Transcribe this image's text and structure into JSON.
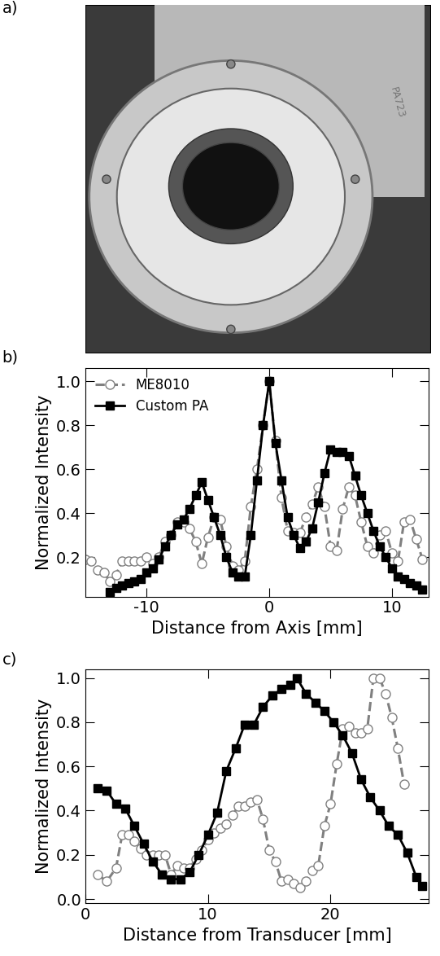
{
  "panel_labels": [
    "a)",
    "b)",
    "c)"
  ],
  "photo": {
    "engraving": "PA723"
  },
  "chart_data": [
    {
      "type": "line",
      "x_label": "Distance from Axis [mm]",
      "y_label": "Normalized Intensity",
      "xlim": [
        -15,
        13
      ],
      "xticks": [
        -10,
        0,
        10
      ],
      "ylim": [
        0.02,
        1.06
      ],
      "yticks": [
        0.2,
        0.4,
        0.6,
        0.8,
        1.0
      ],
      "legend": "upper left",
      "series": [
        {
          "name": "ME8010",
          "color": "#808080",
          "marker": "circle",
          "line_style": "dashed",
          "x": [
            -15,
            -14.5,
            -14,
            -13.5,
            -13,
            -12.5,
            -12,
            -11.5,
            -11,
            -10.5,
            -10,
            -9.5,
            -9,
            -8.5,
            -8,
            -7.5,
            -7,
            -6.5,
            -6,
            -5.5,
            -5,
            -4.5,
            -4,
            -3.5,
            -3,
            -2.5,
            -2,
            -1.5,
            -1,
            -0.5,
            0,
            0.5,
            1,
            1.5,
            2,
            2.5,
            3,
            3.5,
            4,
            4.5,
            5,
            5.5,
            6,
            6.5,
            7,
            7.5,
            8,
            8.5,
            9,
            9.5,
            10,
            10.5,
            11,
            11.5,
            12,
            12.5
          ],
          "values": [
            0.19,
            0.18,
            0.14,
            0.13,
            0.09,
            0.12,
            0.18,
            0.18,
            0.18,
            0.18,
            0.2,
            0.17,
            0.2,
            0.27,
            0.3,
            0.36,
            0.36,
            0.33,
            0.27,
            0.17,
            0.29,
            0.38,
            0.37,
            0.25,
            0.16,
            0.14,
            0.18,
            0.43,
            0.6,
            0.8,
            1.0,
            0.73,
            0.47,
            0.32,
            0.31,
            0.31,
            0.38,
            0.44,
            0.52,
            0.43,
            0.25,
            0.23,
            0.42,
            0.52,
            0.48,
            0.36,
            0.25,
            0.22,
            0.3,
            0.32,
            0.22,
            0.18,
            0.36,
            0.37,
            0.28,
            0.19
          ]
        },
        {
          "name": "Custom PA",
          "color": "#000000",
          "marker": "square",
          "line_style": "solid",
          "x": [
            -13,
            -12.5,
            -12,
            -11.5,
            -11,
            -10.5,
            -10,
            -9.5,
            -9,
            -8.5,
            -8,
            -7.5,
            -7,
            -6.5,
            -6,
            -5.5,
            -5,
            -4.5,
            -4,
            -3.5,
            -3,
            -2.5,
            -2,
            -1.5,
            -1,
            -0.5,
            0,
            0.5,
            1,
            1.5,
            2,
            2.5,
            3,
            3.5,
            4,
            4.5,
            5,
            5.5,
            6,
            6.5,
            7,
            7.5,
            8,
            8.5,
            9,
            9.5,
            10,
            10.5,
            11,
            11.5,
            12,
            12.5
          ],
          "values": [
            0.04,
            0.06,
            0.07,
            0.08,
            0.09,
            0.1,
            0.13,
            0.15,
            0.19,
            0.25,
            0.3,
            0.35,
            0.37,
            0.42,
            0.48,
            0.54,
            0.46,
            0.38,
            0.3,
            0.2,
            0.13,
            0.11,
            0.11,
            0.3,
            0.55,
            0.8,
            1.0,
            0.72,
            0.55,
            0.38,
            0.3,
            0.24,
            0.27,
            0.33,
            0.45,
            0.58,
            0.69,
            0.68,
            0.68,
            0.66,
            0.57,
            0.48,
            0.4,
            0.32,
            0.25,
            0.2,
            0.15,
            0.11,
            0.1,
            0.08,
            0.07,
            0.05
          ]
        }
      ]
    },
    {
      "type": "line",
      "x_label": "Distance from Transducer [mm]",
      "y_label": "Normalized Intensity",
      "xlim": [
        0,
        28
      ],
      "xticks": [
        0,
        10,
        20
      ],
      "ylim": [
        -0.02,
        1.04
      ],
      "yticks": [
        0.0,
        0.2,
        0.4,
        0.6,
        0.8,
        1.0
      ],
      "series": [
        {
          "name": "ME8010",
          "color": "#808080",
          "marker": "circle",
          "line_style": "dashed",
          "x": [
            1,
            1.75,
            2.5,
            3,
            3.5,
            4,
            4.5,
            5,
            5.5,
            6,
            6.5,
            7,
            7.5,
            8,
            8.5,
            9,
            9.5,
            10,
            10.5,
            11,
            11.5,
            12,
            12.5,
            13,
            13.5,
            14,
            14.5,
            15,
            15.5,
            16,
            16.5,
            17,
            17.5,
            18,
            18.5,
            19,
            19.5,
            20,
            20.5,
            21,
            21.5,
            22,
            22.5,
            23,
            23.5,
            24,
            24.5,
            25,
            25.5,
            26
          ],
          "values": [
            0.11,
            0.08,
            0.14,
            0.29,
            0.29,
            0.26,
            0.23,
            0.2,
            0.2,
            0.2,
            0.2,
            0.11,
            0.15,
            0.14,
            0.14,
            0.18,
            0.22,
            0.27,
            0.3,
            0.32,
            0.34,
            0.38,
            0.42,
            0.42,
            0.44,
            0.45,
            0.36,
            0.22,
            0.17,
            0.08,
            0.09,
            0.07,
            0.05,
            0.08,
            0.13,
            0.15,
            0.33,
            0.43,
            0.61,
            0.77,
            0.78,
            0.75,
            0.75,
            0.77,
            1.0,
            1.0,
            0.93,
            0.82,
            0.68,
            0.52
          ]
        },
        {
          "name": "Custom PA",
          "color": "#000000",
          "marker": "square",
          "line_style": "solid",
          "x": [
            1,
            1.75,
            2.5,
            3.25,
            4,
            4.75,
            5.5,
            6.25,
            7,
            7.75,
            8.5,
            9.25,
            10,
            10.75,
            11.5,
            12.25,
            13,
            13.75,
            14.5,
            15.25,
            16,
            16.75,
            17.25,
            18,
            18.75,
            19.5,
            20.25,
            21,
            21.75,
            22.5,
            23.25,
            24,
            24.75,
            25.5,
            26.25,
            27,
            27.5
          ],
          "values": [
            0.5,
            0.49,
            0.43,
            0.41,
            0.33,
            0.25,
            0.17,
            0.11,
            0.09,
            0.09,
            0.12,
            0.2,
            0.29,
            0.39,
            0.58,
            0.68,
            0.79,
            0.79,
            0.87,
            0.92,
            0.95,
            0.97,
            1.0,
            0.93,
            0.89,
            0.85,
            0.8,
            0.74,
            0.66,
            0.54,
            0.46,
            0.4,
            0.33,
            0.29,
            0.21,
            0.1,
            0.06
          ]
        }
      ]
    }
  ]
}
